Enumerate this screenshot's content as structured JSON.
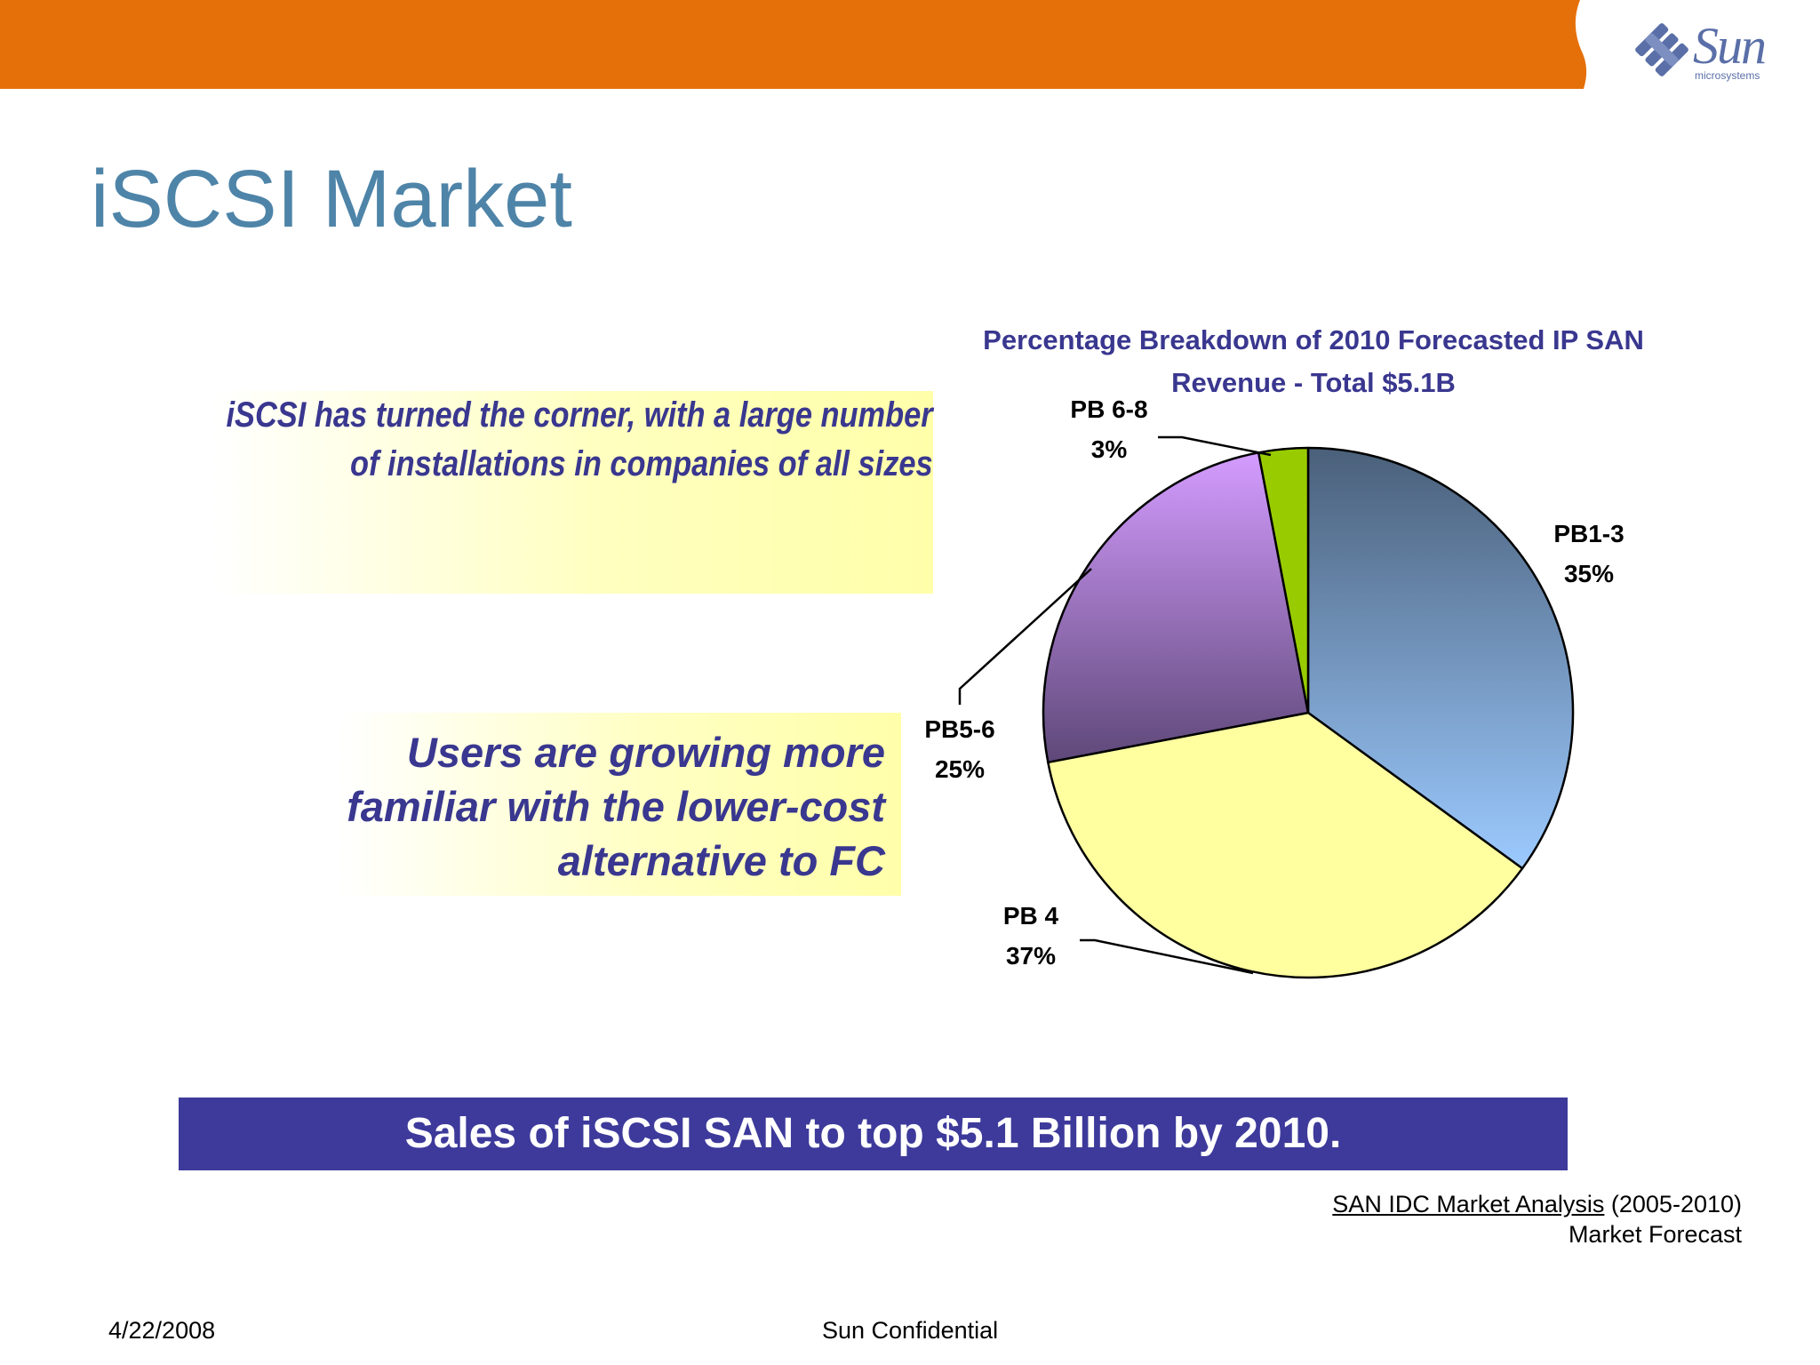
{
  "header": {
    "brand_color": "#e5700a",
    "logo_word": "Sun",
    "logo_sub": "microsystems"
  },
  "slide": {
    "title": "iSCSI Market",
    "callout1_lines": [
      "iSCSI has turned the corner, with a large number",
      "of installations in companies of all sizes"
    ],
    "callout2_lines": [
      "Users are growing more",
      "familiar with the lower-cost",
      "alternative  to FC"
    ],
    "banner": "Sales of iSCSI SAN to top $5.1 Billion by 2010.",
    "source_link": "SAN IDC Market Analysis",
    "source_years": " (2005-2010)",
    "source_line2": "Market Forecast",
    "footer_date": "4/22/2008",
    "footer_confidential": "Sun Confidential"
  },
  "chart_data": {
    "type": "pie",
    "title_lines": [
      "Percentage Breakdown of 2010 Forecasted IP SAN",
      "Revenue - Total $5.1B"
    ],
    "categories": [
      "PB1-3",
      "PB 4",
      "PB5-6",
      "PB 6-8"
    ],
    "values": [
      35,
      37,
      25,
      3
    ],
    "value_labels": [
      "35%",
      "37%",
      "25%",
      "3%"
    ],
    "colors": [
      "#6f8fb6",
      "#ffffa0",
      "#9a78c0",
      "#99cc00"
    ],
    "legend": "none",
    "data_labels": "outside"
  }
}
